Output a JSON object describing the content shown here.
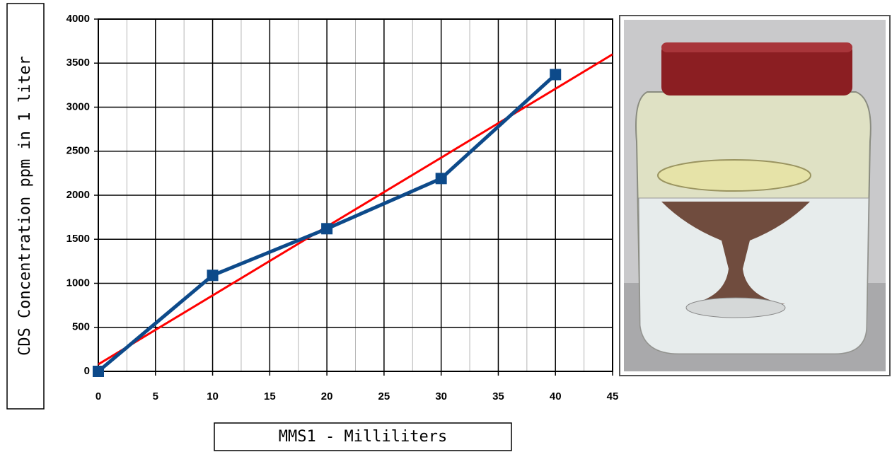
{
  "chart_data": {
    "type": "line",
    "xlabel": "MMS1 - Milliliters",
    "ylabel": "CDS Concentration ppm in 1 liter",
    "xlim": [
      0,
      45
    ],
    "xticks": [
      0,
      5,
      10,
      15,
      20,
      25,
      30,
      35,
      40,
      45
    ],
    "ylim": [
      0,
      4000
    ],
    "yticks": [
      0,
      500,
      1000,
      1500,
      2000,
      2500,
      3000,
      3500,
      4000
    ],
    "grid": true,
    "minor_x_grid": true,
    "series": [
      {
        "color": "#0d4a8a",
        "marker": "square",
        "x": [
          0,
          10,
          20,
          30,
          40
        ],
        "values": [
          0,
          1090,
          1620,
          2190,
          3370
        ]
      },
      {
        "color": "#ff0000",
        "marker": "none",
        "x": [
          0,
          45
        ],
        "values": [
          80,
          3600
        ]
      }
    ]
  }
}
